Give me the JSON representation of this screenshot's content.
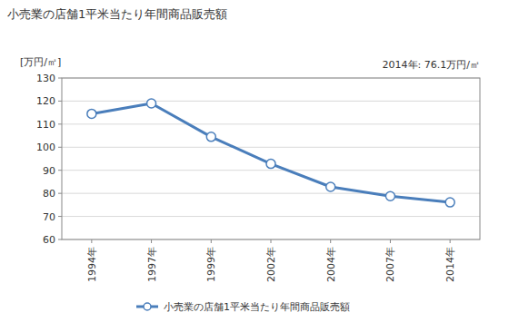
{
  "chart_data": {
    "type": "line",
    "title": "小売業の店舗1平米当たり年間商品販売額",
    "y_label": "[万円/㎡]",
    "annotation": "2014年: 76.1万円/㎡",
    "categories": [
      "1994年",
      "1997年",
      "1999年",
      "2002年",
      "2004年",
      "2007年",
      "2014年"
    ],
    "series": [
      {
        "name": "小売業の店舗1平米当たり年間商品販売額",
        "color": "#4a7ebb",
        "marker": "circle",
        "values": [
          114.5,
          119,
          104.5,
          92.8,
          82.8,
          78.8,
          76.1
        ]
      }
    ],
    "ylim": [
      60,
      130
    ],
    "yticks": [
      60,
      70,
      80,
      90,
      100,
      110,
      120,
      130
    ],
    "grid": true,
    "legend": "bottom"
  }
}
